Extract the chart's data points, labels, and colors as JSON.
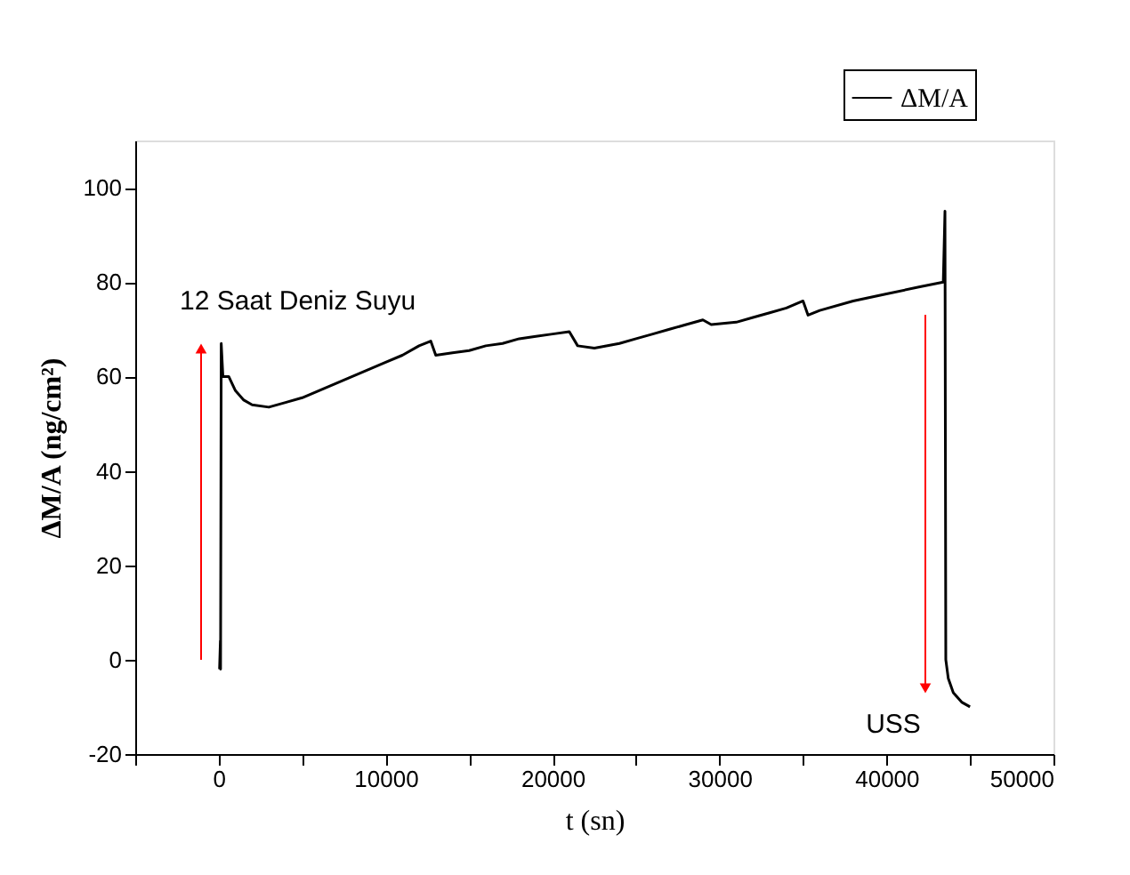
{
  "chart_data": {
    "type": "line",
    "xlabel": "t (sn)",
    "ylabel": "ΔM/A (ng/cm²)",
    "xlim": [
      -5000,
      50000
    ],
    "ylim": [
      -20,
      110
    ],
    "xticks": [
      {
        "value": -5000,
        "label": null
      },
      0,
      {
        "value": 5000,
        "label": null
      },
      10000,
      {
        "value": 15000,
        "label": null
      },
      20000,
      {
        "value": 25000,
        "label": null
      },
      30000,
      {
        "value": 35000,
        "label": null
      },
      40000,
      {
        "value": 45000,
        "label": null
      },
      50000
    ],
    "yticks": [
      -20,
      0,
      20,
      40,
      60,
      80,
      100
    ],
    "grid": false,
    "legend": "top right",
    "marker": "none",
    "line_style": "solid",
    "annotations": [
      "12 Saat Deniz Suyu",
      "USS"
    ],
    "series": [
      {
        "name": "ΔM/A",
        "color": "#000000",
        "x": [
          50,
          100,
          110,
          150,
          250,
          600,
          1000,
          1500,
          2000,
          3000,
          4000,
          5000,
          6000,
          7000,
          8000,
          9000,
          10000,
          11000,
          12000,
          12700,
          13000,
          14000,
          15000,
          16000,
          17000,
          18000,
          19000,
          20000,
          21000,
          21500,
          22500,
          24000,
          25000,
          26000,
          27000,
          28000,
          29000,
          29500,
          31000,
          32000,
          33000,
          34000,
          35000,
          35300,
          36000,
          38000,
          40000,
          42000,
          43400,
          43500,
          43550,
          43700,
          44000,
          44500,
          45000
        ],
        "values": [
          -2,
          4,
          -2,
          67,
          60,
          60,
          57,
          55,
          54,
          53.5,
          54.5,
          55.5,
          57,
          58.5,
          60,
          61.5,
          63,
          64.5,
          66.5,
          67.5,
          64.5,
          65,
          65.5,
          66.5,
          67,
          68,
          68.5,
          69,
          69.5,
          66.5,
          66,
          67,
          68,
          69,
          70,
          71,
          72,
          71,
          71.5,
          72.5,
          73.5,
          74.5,
          76,
          73,
          74,
          76,
          77.5,
          79,
          80,
          95,
          0,
          -4,
          -7,
          -9,
          -10
        ]
      }
    ]
  }
}
